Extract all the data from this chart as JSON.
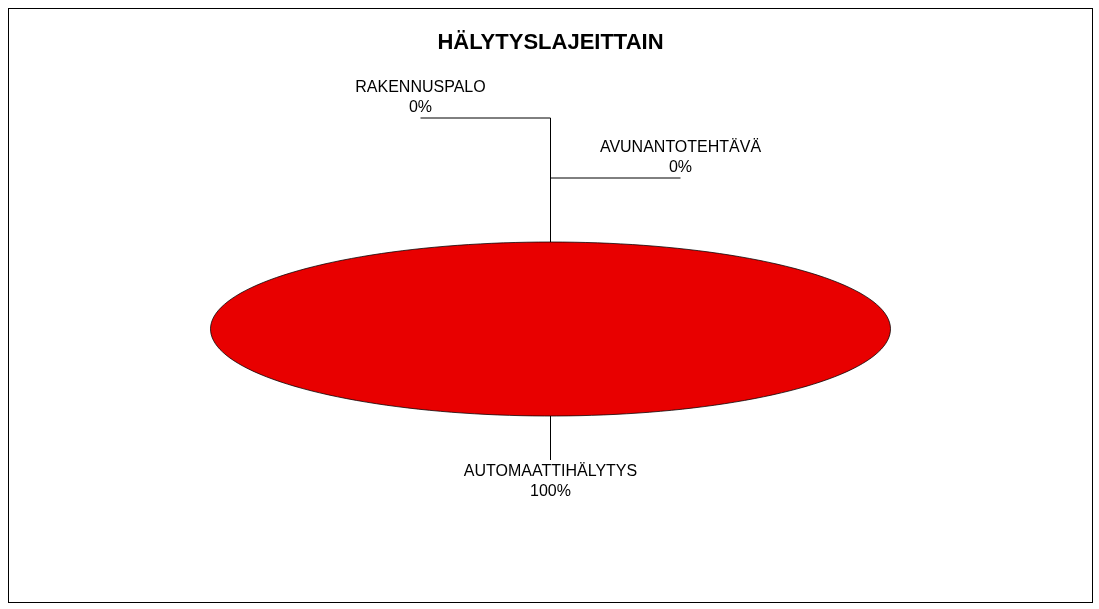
{
  "chart_data": {
    "type": "pie",
    "title": "HÄLYTYSLAJEITTAIN",
    "categories": [
      "RAKENNUSPALO",
      "AVUNANTOTEHTÄVÄ",
      "AUTOMAATTIHÄLYTYS"
    ],
    "values": [
      0,
      0,
      100
    ],
    "colors": [
      "#4f81bd",
      "#9bbb59",
      "#e80000"
    ],
    "value_labels": [
      "0%",
      "0%",
      "100%"
    ]
  }
}
